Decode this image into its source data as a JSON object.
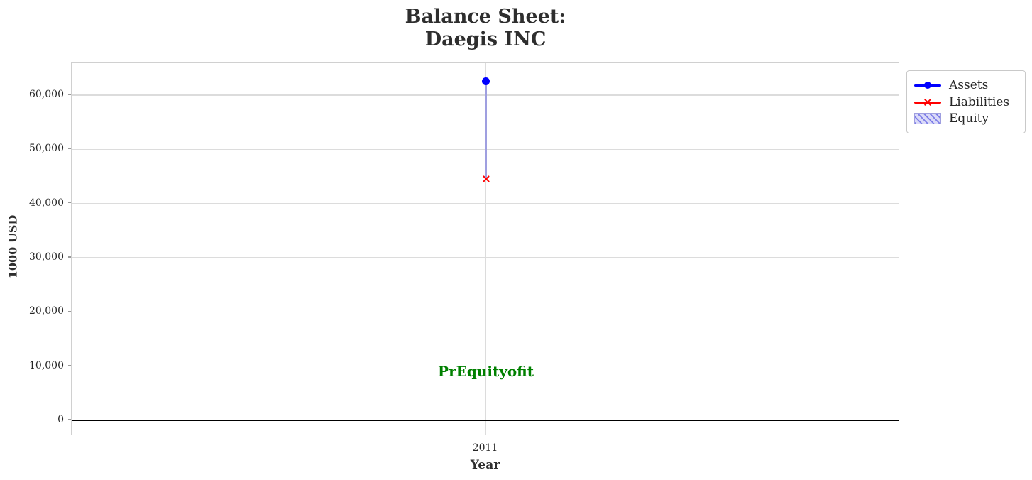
{
  "figure": {
    "kind": "matplotlib-style balance sheet chart"
  },
  "chart_data": {
    "type": "scatter",
    "title": "Balance Sheet:\nDaegis INC",
    "xlabel": "Year",
    "ylabel": "1000 USD",
    "x_categories": [
      "2011"
    ],
    "series": [
      {
        "name": "Assets",
        "marker": "circle",
        "color": "#0000ff",
        "values": [
          62500
        ]
      },
      {
        "name": "Liabilities",
        "marker": "x",
        "color": "#ff0000",
        "values": [
          44500
        ]
      },
      {
        "name": "Equity",
        "marker": "hatched-band",
        "color": "#dadaf8",
        "band_from_series": "Liabilities",
        "band_to_series": "Assets"
      }
    ],
    "ylim": [
      -2900,
      65900
    ],
    "yticks": [
      0,
      10000,
      20000,
      30000,
      40000,
      50000,
      60000
    ],
    "ytick_labels": [
      "0",
      "10,000",
      "20,000",
      "30,000",
      "40,000",
      "50,000",
      "60,000"
    ],
    "grid": true,
    "zero_line": true,
    "legend_position": "outside-upper-right"
  },
  "annotation": {
    "text": "PrEquityofit",
    "color": "#008000",
    "x_category": "2011",
    "y_value": 9000
  },
  "legend": {
    "items": [
      {
        "label": "Assets",
        "swatch": "line-circle"
      },
      {
        "label": "Liabilities",
        "swatch": "line-x"
      },
      {
        "label": "Equity",
        "swatch": "hatched-patch"
      }
    ]
  },
  "colors": {
    "assets": "#0000ff",
    "liabilities": "#ff0000",
    "equity_fill": "#dadaf8",
    "equity_hatch": "#7d7de8",
    "equity_edge": "#9f9fe0",
    "annotation_green": "#008000",
    "grid": "#dcdcdc",
    "text": "#262626"
  }
}
